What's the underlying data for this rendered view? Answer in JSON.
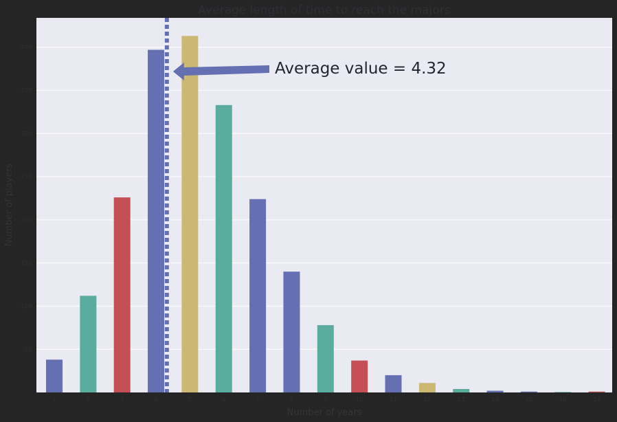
{
  "chart_data": {
    "type": "bar",
    "title": "Average length of time to reach the majors",
    "xlabel": "Number of years",
    "ylabel": "Number of players",
    "categories": [
      "1",
      "2",
      "3",
      "4",
      "5",
      "6",
      "7",
      "8",
      "9",
      "10",
      "11",
      "12",
      "13",
      "14",
      "15",
      "16",
      "17"
    ],
    "values": [
      38,
      112,
      226,
      397,
      413,
      333,
      224,
      140,
      78,
      37,
      20,
      11,
      4,
      2,
      1,
      0.5,
      1
    ],
    "bar_colors": [
      "#6470b2",
      "#5aad9e",
      "#c44f55",
      "#6470b2",
      "#ccb873",
      "#5aad9e",
      "#6470b2",
      "#6470b2",
      "#5aad9e",
      "#c44f55",
      "#6470b2",
      "#ccb873",
      "#5aad9e",
      "#6470b2",
      "#6470b2",
      "#5aad9e",
      "#c44f55"
    ],
    "ylim": [
      0,
      434
    ],
    "y_ticks": [
      50,
      100,
      150,
      200,
      250,
      300,
      350,
      400
    ],
    "grid": true,
    "background_color": "#eaeaf2",
    "average_line": {
      "value": 4.32,
      "color": "#6470b2",
      "style": "dotted"
    },
    "annotation": {
      "text": "Average value = 4.32",
      "arrow_color": "#6470b2"
    }
  }
}
